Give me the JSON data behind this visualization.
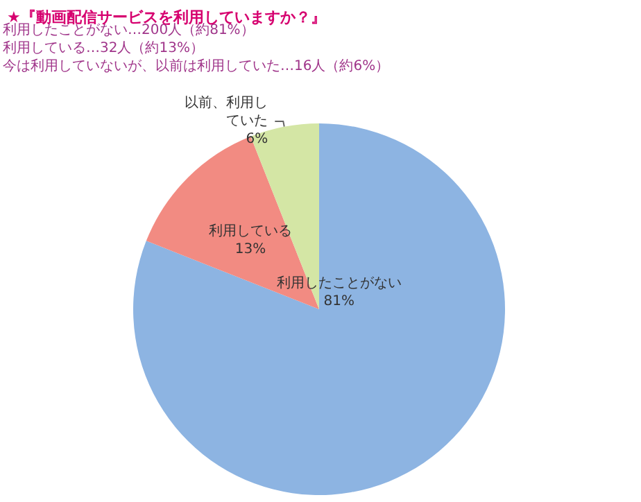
{
  "chart_data": {
    "type": "pie",
    "title": "★『動画配信サービスを利用していますか？』",
    "annotations": [
      "利用したことがない…200人（約81%）",
      "利用している…32人（約13%）",
      "今は利用していないが、以前は利用していた…16人（約6%）"
    ],
    "categories": [
      "利用したことがない",
      "利用している",
      "以前、利用していた"
    ],
    "values": [
      81,
      13,
      6
    ],
    "value_labels": [
      "81%",
      "13%",
      "6%"
    ],
    "colors": [
      "#8db4e2",
      "#f28b82",
      "#d4e6a5"
    ],
    "legend": false
  }
}
